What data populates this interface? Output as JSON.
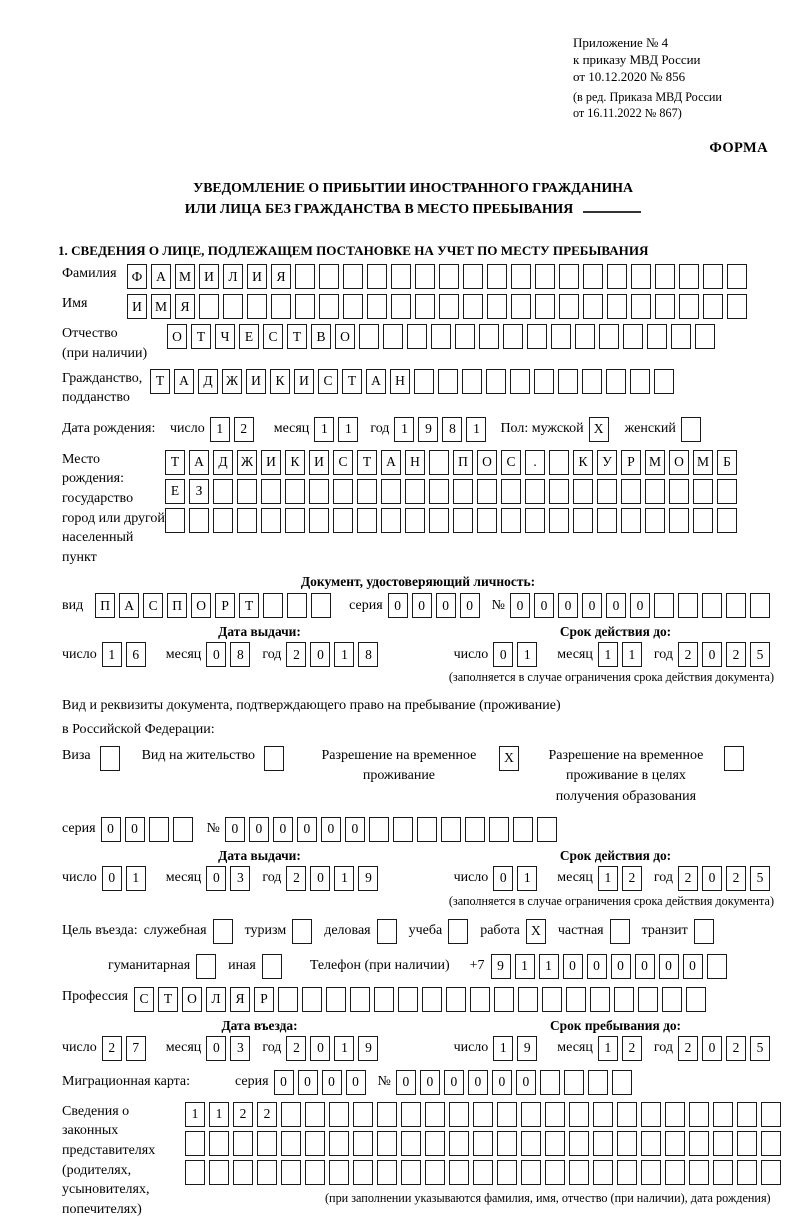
{
  "meta": {
    "appendix_lines": [
      "Приложение № 4",
      "к приказу МВД России",
      "от 10.12.2020 № 856"
    ],
    "revision_lines": [
      "(в ред. Приказа МВД России",
      "от 16.11.2022 № 867)"
    ],
    "form_label": "ФОРМА"
  },
  "title": {
    "line1": "УВЕДОМЛЕНИЕ О ПРИБЫТИИ ИНОСТРАННОГО ГРАЖДАНИНА",
    "line2": "ИЛИ ЛИЦА БЕЗ ГРАЖДАНСТВА В МЕСТО ПРЕБЫВАНИЯ"
  },
  "date_labels": {
    "day": "число",
    "month": "месяц",
    "year": "год"
  },
  "section1": {
    "title": "1. СВЕДЕНИЯ О ЛИЦЕ, ПОДЛЕЖАЩЕМ ПОСТАНОВКЕ НА УЧЕТ ПО МЕСТУ ПРЕБЫВАНИЯ",
    "surname": {
      "label": "Фамилия",
      "cells": [
        "Ф",
        "А",
        "М",
        "И",
        "Л",
        "И",
        "Я",
        "",
        "",
        "",
        "",
        "",
        "",
        "",
        "",
        "",
        "",
        "",
        "",
        "",
        "",
        "",
        "",
        "",
        "",
        ""
      ]
    },
    "firstname": {
      "label": "Имя",
      "cells": [
        "И",
        "М",
        "Я",
        "",
        "",
        "",
        "",
        "",
        "",
        "",
        "",
        "",
        "",
        "",
        "",
        "",
        "",
        "",
        "",
        "",
        "",
        "",
        "",
        "",
        "",
        ""
      ]
    },
    "patronymic": {
      "label": "Отчество",
      "label2": "(при наличии)",
      "cells": [
        "О",
        "Т",
        "Ч",
        "Е",
        "С",
        "Т",
        "В",
        "О",
        "",
        "",
        "",
        "",
        "",
        "",
        "",
        "",
        "",
        "",
        "",
        "",
        "",
        "",
        ""
      ]
    },
    "citizenship": {
      "label": "Гражданство,",
      "label2": "подданство",
      "cells": [
        "Т",
        "А",
        "Д",
        "Ж",
        "И",
        "К",
        "И",
        "С",
        "Т",
        "А",
        "Н",
        "",
        "",
        "",
        "",
        "",
        "",
        "",
        "",
        "",
        "",
        ""
      ]
    },
    "birth_date": {
      "label": "Дата рождения:",
      "day": [
        "1",
        "2"
      ],
      "month": [
        "1",
        "1"
      ],
      "year": [
        "1",
        "9",
        "8",
        "1"
      ],
      "sex_label": "Пол: мужской",
      "male": "X",
      "female_label": "женский",
      "female": ""
    },
    "birth_place": {
      "labels": [
        "Место рождения:",
        "государство",
        "город или другой",
        "населенный пункт"
      ],
      "row1": [
        "Т",
        "А",
        "Д",
        "Ж",
        "И",
        "К",
        "И",
        "С",
        "Т",
        "А",
        "Н",
        "",
        "П",
        "О",
        "С",
        ".",
        "",
        "К",
        "У",
        "Р",
        "М",
        "О",
        "М",
        "Б"
      ],
      "row2": [
        "Е",
        "З",
        "",
        "",
        "",
        "",
        "",
        "",
        "",
        "",
        "",
        "",
        "",
        "",
        "",
        "",
        "",
        "",
        "",
        "",
        "",
        "",
        "",
        ""
      ],
      "row3": [
        "",
        "",
        "",
        "",
        "",
        "",
        "",
        "",
        "",
        "",
        "",
        "",
        "",
        "",
        "",
        "",
        "",
        "",
        "",
        "",
        "",
        "",
        "",
        ""
      ]
    },
    "identity_doc": {
      "header": "Документ, удостоверяющий личность:",
      "kind_label": "вид",
      "kind_cells": [
        "П",
        "А",
        "С",
        "П",
        "О",
        "Р",
        "Т",
        "",
        "",
        ""
      ],
      "series_label": "серия",
      "series_cells": [
        "0",
        "0",
        "0",
        "0"
      ],
      "number_label": "№",
      "number_cells": [
        "0",
        "0",
        "0",
        "0",
        "0",
        "0",
        "",
        "",
        "",
        "",
        ""
      ],
      "issue": {
        "header": "Дата выдачи:",
        "day": [
          "1",
          "6"
        ],
        "month": [
          "0",
          "8"
        ],
        "year": [
          "2",
          "0",
          "1",
          "8"
        ]
      },
      "valid": {
        "header": "Срок действия до:",
        "day": [
          "0",
          "1"
        ],
        "month": [
          "1",
          "1"
        ],
        "year": [
          "2",
          "0",
          "2",
          "5"
        ]
      },
      "note": "(заполняется в случае ограничения срока действия документа)"
    },
    "residence_doc": {
      "intro1": "Вид и реквизиты документа, подтверждающего право на пребывание (проживание)",
      "intro2": "в Российской Федерации:",
      "options": [
        {
          "label": "Виза",
          "value": ""
        },
        {
          "label": "Вид на жительство",
          "value": ""
        },
        {
          "label": "Разрешение на временное проживание",
          "value": "X"
        },
        {
          "label": "Разрешение на временное проживание в целях получения образования",
          "value": ""
        }
      ],
      "series_label": "серия",
      "series_cells": [
        "0",
        "0",
        "",
        ""
      ],
      "number_label": "№",
      "number_cells": [
        "0",
        "0",
        "0",
        "0",
        "0",
        "0",
        "",
        "",
        "",
        "",
        "",
        "",
        "",
        ""
      ],
      "issue": {
        "header": "Дата выдачи:",
        "day": [
          "0",
          "1"
        ],
        "month": [
          "0",
          "3"
        ],
        "year": [
          "2",
          "0",
          "1",
          "9"
        ]
      },
      "valid": {
        "header": "Срок действия до:",
        "day": [
          "0",
          "1"
        ],
        "month": [
          "1",
          "2"
        ],
        "year": [
          "2",
          "0",
          "2",
          "5"
        ]
      },
      "note": "(заполняется в случае ограничения срока действия документа)"
    },
    "purpose": {
      "intro": "Цель въезда:",
      "items": [
        {
          "label": "служебная",
          "value": ""
        },
        {
          "label": "туризм",
          "value": ""
        },
        {
          "label": "деловая",
          "value": ""
        },
        {
          "label": "учеба",
          "value": ""
        },
        {
          "label": "работа",
          "value": "X"
        },
        {
          "label": "частная",
          "value": ""
        },
        {
          "label": "транзит",
          "value": ""
        },
        {
          "label": "гуманитарная",
          "value": ""
        },
        {
          "label": "иная",
          "value": ""
        }
      ],
      "phone_label": "Телефон (при наличии)",
      "phone_prefix": "+7",
      "phone_cells": [
        "9",
        "1",
        "1",
        "0",
        "0",
        "0",
        "0",
        "0",
        "0",
        ""
      ]
    },
    "profession": {
      "label": "Профессия",
      "cells": [
        "С",
        "Т",
        "О",
        "Л",
        "Я",
        "Р",
        "",
        "",
        "",
        "",
        "",
        "",
        "",
        "",
        "",
        "",
        "",
        "",
        "",
        "",
        "",
        "",
        "",
        ""
      ]
    },
    "entry": {
      "header": "Дата въезда:",
      "day": [
        "2",
        "7"
      ],
      "month": [
        "0",
        "3"
      ],
      "year": [
        "2",
        "0",
        "1",
        "9"
      ]
    },
    "stay": {
      "header": "Срок пребывания до:",
      "day": [
        "1",
        "9"
      ],
      "month": [
        "1",
        "2"
      ],
      "year": [
        "2",
        "0",
        "2",
        "5"
      ]
    },
    "migration_card": {
      "label": "Миграционная карта:",
      "series_label": "серия",
      "series_cells": [
        "0",
        "0",
        "0",
        "0"
      ],
      "number_label": "№",
      "number_cells": [
        "0",
        "0",
        "0",
        "0",
        "0",
        "0",
        "",
        "",
        "",
        ""
      ]
    },
    "representatives": {
      "labels": [
        "Сведения о",
        "законных",
        "представителях",
        "(родителях,",
        "усыновителях,",
        "попечителях)"
      ],
      "row1": [
        "1",
        "1",
        "2",
        "2",
        "",
        "",
        "",
        "",
        "",
        "",
        "",
        "",
        "",
        "",
        "",
        "",
        "",
        "",
        "",
        "",
        "",
        "",
        "",
        "",
        ""
      ],
      "row2": [
        "",
        "",
        "",
        "",
        "",
        "",
        "",
        "",
        "",
        "",
        "",
        "",
        "",
        "",
        "",
        "",
        "",
        "",
        "",
        "",
        "",
        "",
        "",
        "",
        ""
      ],
      "row3": [
        "",
        "",
        "",
        "",
        "",
        "",
        "",
        "",
        "",
        "",
        "",
        "",
        "",
        "",
        "",
        "",
        "",
        "",
        "",
        "",
        "",
        "",
        "",
        "",
        ""
      ],
      "note": "(при заполнении указываются фамилия, имя, отчество (при наличии), дата рождения)"
    }
  }
}
